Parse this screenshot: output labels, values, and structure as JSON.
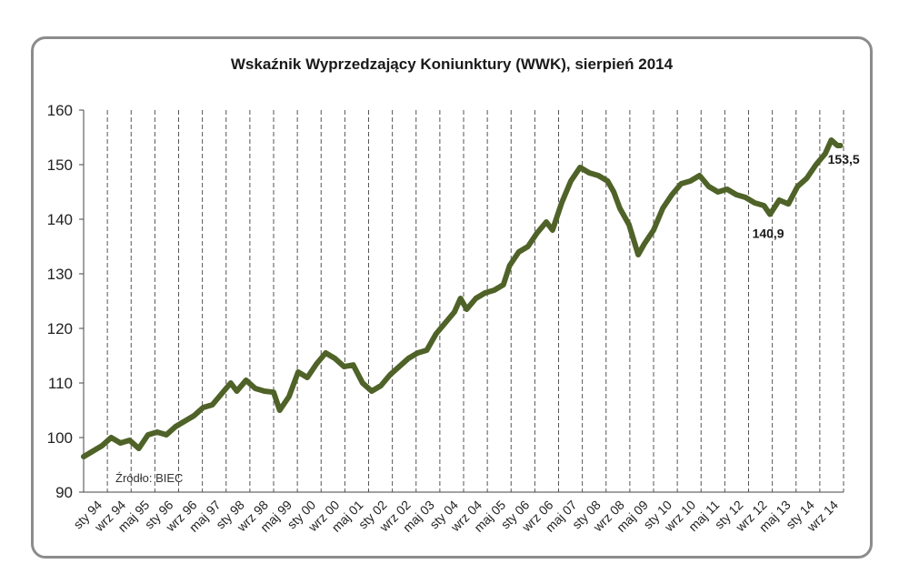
{
  "chart_data": {
    "type": "line",
    "title": "Wskaźnik Wyprzedzający Koniunktury (WWK), sierpień 2014",
    "source_note": "Źródło: BIEC",
    "ylim": [
      90,
      160
    ],
    "y_ticks": [
      90,
      100,
      110,
      120,
      130,
      140,
      150,
      160
    ],
    "x_range": [
      "1994-01",
      "2014-09"
    ],
    "x_tick_labels": [
      "sty 94",
      "wrz 94",
      "maj 95",
      "sty 96",
      "wrz 96",
      "maj 97",
      "sty 98",
      "wrz 98",
      "maj 99",
      "sty 00",
      "wrz 00",
      "maj 01",
      "sty 02",
      "wrz 02",
      "maj 03",
      "sty 04",
      "wrz 04",
      "maj 05",
      "sty 06",
      "wrz 06",
      "maj 07",
      "sty 08",
      "wrz 08",
      "maj 09",
      "sty 10",
      "wrz 10",
      "maj 11",
      "sty 12",
      "wrz 12",
      "maj 13",
      "sty 14",
      "wrz 14"
    ],
    "grid": "vertical-dashed",
    "line_color": "#4f6228",
    "series": [
      {
        "points": [
          [
            "1994-01",
            96.5
          ],
          [
            "1994-04",
            97.5
          ],
          [
            "1994-07",
            98.5
          ],
          [
            "1994-10",
            100
          ],
          [
            "1995-01",
            99
          ],
          [
            "1995-04",
            99.5
          ],
          [
            "1995-07",
            98
          ],
          [
            "1995-10",
            100.5
          ],
          [
            "1996-01",
            101
          ],
          [
            "1996-04",
            100.5
          ],
          [
            "1996-07",
            102
          ],
          [
            "1996-10",
            103
          ],
          [
            "1997-01",
            104
          ],
          [
            "1997-04",
            105.5
          ],
          [
            "1997-07",
            106
          ],
          [
            "1997-10",
            108
          ],
          [
            "1998-01",
            110
          ],
          [
            "1998-03",
            108.5
          ],
          [
            "1998-06",
            110.5
          ],
          [
            "1998-09",
            109
          ],
          [
            "1998-12",
            108.5
          ],
          [
            "1999-03",
            108.3
          ],
          [
            "1999-05",
            105
          ],
          [
            "1999-08",
            107.5
          ],
          [
            "1999-11",
            112
          ],
          [
            "2000-02",
            111
          ],
          [
            "2000-05",
            113.5
          ],
          [
            "2000-08",
            115.5
          ],
          [
            "2000-11",
            114.5
          ],
          [
            "2001-02",
            113
          ],
          [
            "2001-05",
            113.3
          ],
          [
            "2001-08",
            110
          ],
          [
            "2001-11",
            108.5
          ],
          [
            "2002-02",
            109.5
          ],
          [
            "2002-05",
            111.5
          ],
          [
            "2002-08",
            113
          ],
          [
            "2002-11",
            114.5
          ],
          [
            "2003-02",
            115.5
          ],
          [
            "2003-05",
            116
          ],
          [
            "2003-08",
            119
          ],
          [
            "2003-11",
            121
          ],
          [
            "2004-02",
            123
          ],
          [
            "2004-04",
            125.5
          ],
          [
            "2004-06",
            123.5
          ],
          [
            "2004-09",
            125.5
          ],
          [
            "2004-12",
            126.5
          ],
          [
            "2005-03",
            127
          ],
          [
            "2005-06",
            128
          ],
          [
            "2005-08",
            131.5
          ],
          [
            "2005-11",
            134
          ],
          [
            "2006-02",
            135
          ],
          [
            "2006-05",
            137.5
          ],
          [
            "2006-08",
            139.5
          ],
          [
            "2006-10",
            138
          ],
          [
            "2007-01",
            143
          ],
          [
            "2007-04",
            147
          ],
          [
            "2007-07",
            149.5
          ],
          [
            "2007-10",
            148.5
          ],
          [
            "2008-01",
            148
          ],
          [
            "2008-04",
            147
          ],
          [
            "2008-06",
            145
          ],
          [
            "2008-08",
            142
          ],
          [
            "2008-11",
            139
          ],
          [
            "2009-02",
            133.5
          ],
          [
            "2009-04",
            135.5
          ],
          [
            "2009-07",
            138
          ],
          [
            "2009-10",
            142
          ],
          [
            "2010-01",
            144.5
          ],
          [
            "2010-04",
            146.5
          ],
          [
            "2010-07",
            147
          ],
          [
            "2010-10",
            148
          ],
          [
            "2011-01",
            146
          ],
          [
            "2011-04",
            145
          ],
          [
            "2011-07",
            145.5
          ],
          [
            "2011-10",
            144.5
          ],
          [
            "2012-01",
            144
          ],
          [
            "2012-04",
            143
          ],
          [
            "2012-07",
            142.5
          ],
          [
            "2012-09",
            140.9
          ],
          [
            "2012-12",
            143.5
          ],
          [
            "2013-03",
            142.8
          ],
          [
            "2013-06",
            146
          ],
          [
            "2013-09",
            147.5
          ],
          [
            "2013-12",
            150
          ],
          [
            "2014-03",
            152
          ],
          [
            "2014-05",
            154.5
          ],
          [
            "2014-07",
            153.5
          ],
          [
            "2014-08",
            153.5
          ]
        ]
      }
    ],
    "annotations": [
      {
        "text": "140,9",
        "x": "2012-09",
        "y": 140.9,
        "position": "below"
      },
      {
        "text": "153,5",
        "x": "2014-08",
        "y": 153.5,
        "position": "right"
      }
    ]
  }
}
